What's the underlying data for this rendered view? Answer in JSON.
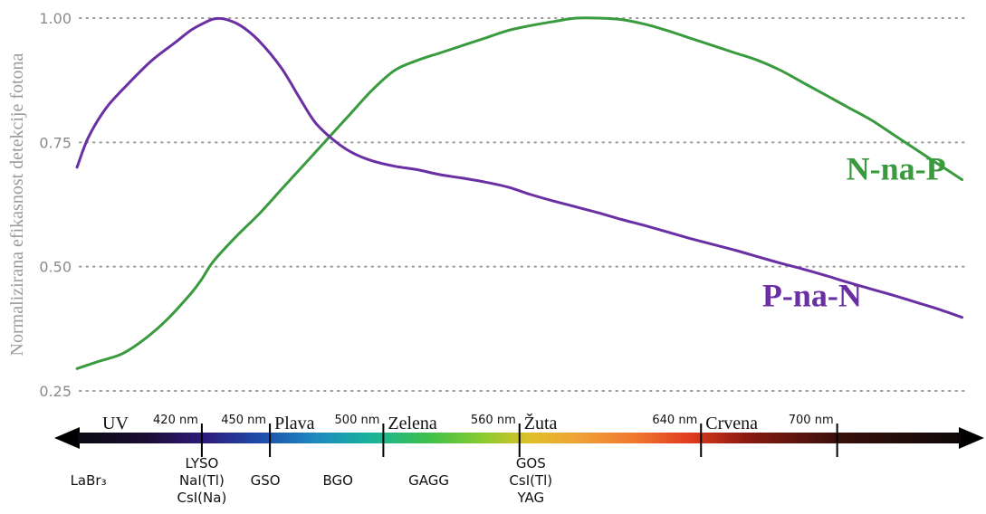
{
  "chart_data": {
    "type": "line",
    "title": "",
    "xlabel": "",
    "ylabel": "Normalizirana efikasnost detekcije fotona",
    "xlim": [
      355,
      760
    ],
    "ylim": [
      0.25,
      1.0
    ],
    "yticks": [
      1.0,
      0.75,
      0.5,
      0.25
    ],
    "ytick_labels": [
      "1.00",
      "0.75",
      "0.50",
      "0.25"
    ],
    "grid": "horizontal-dotted",
    "series": [
      {
        "name": "N-na-P",
        "color": "#3a9a3e",
        "points": [
          [
            365,
            0.295
          ],
          [
            375,
            0.31
          ],
          [
            385,
            0.325
          ],
          [
            395,
            0.355
          ],
          [
            405,
            0.395
          ],
          [
            415,
            0.445
          ],
          [
            420,
            0.475
          ],
          [
            425,
            0.51
          ],
          [
            435,
            0.56
          ],
          [
            445,
            0.605
          ],
          [
            455,
            0.655
          ],
          [
            465,
            0.705
          ],
          [
            475,
            0.755
          ],
          [
            485,
            0.805
          ],
          [
            495,
            0.855
          ],
          [
            505,
            0.895
          ],
          [
            515,
            0.915
          ],
          [
            525,
            0.93
          ],
          [
            535,
            0.945
          ],
          [
            545,
            0.96
          ],
          [
            555,
            0.975
          ],
          [
            565,
            0.985
          ],
          [
            575,
            0.993
          ],
          [
            585,
            1.0
          ],
          [
            595,
            1.0
          ],
          [
            605,
            0.997
          ],
          [
            615,
            0.988
          ],
          [
            625,
            0.975
          ],
          [
            635,
            0.96
          ],
          [
            645,
            0.945
          ],
          [
            655,
            0.93
          ],
          [
            665,
            0.915
          ],
          [
            675,
            0.895
          ],
          [
            685,
            0.87
          ],
          [
            695,
            0.845
          ],
          [
            705,
            0.82
          ],
          [
            715,
            0.795
          ],
          [
            725,
            0.765
          ],
          [
            735,
            0.735
          ],
          [
            745,
            0.705
          ],
          [
            755,
            0.675
          ]
        ]
      },
      {
        "name": "P-na-N",
        "color": "#6a2fa3",
        "points": [
          [
            365,
            0.7
          ],
          [
            370,
            0.76
          ],
          [
            378,
            0.82
          ],
          [
            388,
            0.87
          ],
          [
            398,
            0.915
          ],
          [
            408,
            0.95
          ],
          [
            415,
            0.975
          ],
          [
            420,
            0.988
          ],
          [
            425,
            0.998
          ],
          [
            430,
            0.998
          ],
          [
            437,
            0.985
          ],
          [
            445,
            0.955
          ],
          [
            455,
            0.9
          ],
          [
            463,
            0.84
          ],
          [
            470,
            0.79
          ],
          [
            478,
            0.755
          ],
          [
            486,
            0.73
          ],
          [
            495,
            0.713
          ],
          [
            505,
            0.702
          ],
          [
            515,
            0.695
          ],
          [
            525,
            0.685
          ],
          [
            535,
            0.678
          ],
          [
            545,
            0.67
          ],
          [
            555,
            0.66
          ],
          [
            565,
            0.645
          ],
          [
            575,
            0.632
          ],
          [
            585,
            0.62
          ],
          [
            595,
            0.608
          ],
          [
            605,
            0.595
          ],
          [
            615,
            0.583
          ],
          [
            625,
            0.57
          ],
          [
            635,
            0.557
          ],
          [
            645,
            0.545
          ],
          [
            655,
            0.533
          ],
          [
            665,
            0.52
          ],
          [
            675,
            0.507
          ],
          [
            685,
            0.495
          ],
          [
            695,
            0.482
          ],
          [
            705,
            0.468
          ],
          [
            715,
            0.455
          ],
          [
            725,
            0.442
          ],
          [
            735,
            0.428
          ],
          [
            745,
            0.414
          ],
          [
            755,
            0.398
          ]
        ]
      }
    ],
    "series_labels": [
      {
        "text": "N-na-P",
        "color": "#3a9a3e",
        "at": [
          704,
          0.675
        ],
        "anchor": "start"
      },
      {
        "text": "P-na-N",
        "color": "#6a2fa3",
        "at": [
          667,
          0.42
        ],
        "anchor": "start"
      }
    ]
  },
  "spectrum": {
    "colors": [
      {
        "nm": 355,
        "color": "#0b0a12"
      },
      {
        "nm": 395,
        "color": "#1a0d33"
      },
      {
        "nm": 420,
        "color": "#2e1a7a"
      },
      {
        "nm": 445,
        "color": "#1f4aa8"
      },
      {
        "nm": 470,
        "color": "#1d8ac0"
      },
      {
        "nm": 495,
        "color": "#19b39a"
      },
      {
        "nm": 520,
        "color": "#3fc04a"
      },
      {
        "nm": 545,
        "color": "#8ecb2e"
      },
      {
        "nm": 565,
        "color": "#e0c02a"
      },
      {
        "nm": 585,
        "color": "#f0a236"
      },
      {
        "nm": 610,
        "color": "#f07a30"
      },
      {
        "nm": 635,
        "color": "#e03b1e"
      },
      {
        "nm": 660,
        "color": "#8a1a10"
      },
      {
        "nm": 700,
        "color": "#3a100c"
      },
      {
        "nm": 760,
        "color": "#0c0808"
      }
    ],
    "ticks": [
      {
        "nm": 420,
        "label": "420 nm"
      },
      {
        "nm": 450,
        "label": "450 nm"
      },
      {
        "nm": 500,
        "label": "500 nm"
      },
      {
        "nm": 560,
        "label": "560 nm"
      },
      {
        "nm": 640,
        "label": "640 nm"
      },
      {
        "nm": 700,
        "label": "700 nm"
      }
    ],
    "bands": [
      {
        "nm": 355,
        "label": "UV"
      },
      {
        "nm": 450,
        "label": "Plava"
      },
      {
        "nm": 500,
        "label": "Zelena"
      },
      {
        "nm": 560,
        "label": "Žuta"
      },
      {
        "nm": 640,
        "label": "Crvena"
      }
    ]
  },
  "materials": [
    {
      "nm": 370,
      "lines": [
        "LaBr₃"
      ]
    },
    {
      "nm": 420,
      "lines": [
        "LYSO",
        "NaI(Tl)",
        "CsI(Na)"
      ]
    },
    {
      "nm": 448,
      "lines": [
        "GSO"
      ]
    },
    {
      "nm": 480,
      "lines": [
        "BGO"
      ]
    },
    {
      "nm": 520,
      "lines": [
        "GAGG"
      ]
    },
    {
      "nm": 565,
      "lines": [
        "GOS",
        "CsI(Tl)",
        "YAG"
      ]
    }
  ]
}
